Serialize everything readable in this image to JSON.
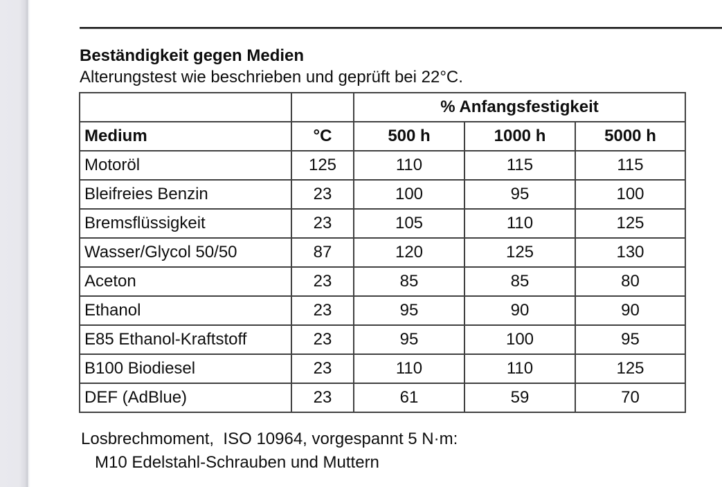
{
  "section": {
    "title": "Beständigkeit gegen Medien",
    "subtitle": "Alterungstest wie beschrieben und geprüft bei 22°C."
  },
  "table": {
    "group_header": "% Anfangsfestigkeit",
    "columns": [
      "Medium",
      "°C",
      "500 h",
      "1000 h",
      "5000 h"
    ],
    "rows": [
      [
        "Motoröl",
        "125",
        "110",
        "115",
        "115"
      ],
      [
        "Bleifreies Benzin",
        "23",
        "100",
        "95",
        "100"
      ],
      [
        "Bremsflüssigkeit",
        "23",
        "105",
        "110",
        "125"
      ],
      [
        "Wasser/Glycol 50/50",
        "87",
        "120",
        "125",
        "130"
      ],
      [
        "Aceton",
        "23",
        "85",
        "85",
        "80"
      ],
      [
        "Ethanol",
        "23",
        "95",
        "90",
        "90"
      ],
      [
        "E85 Ethanol-Kraftstoff",
        "23",
        "95",
        "100",
        "95"
      ],
      [
        "B100 Biodiesel",
        "23",
        "110",
        "110",
        "125"
      ],
      [
        "DEF (AdBlue)",
        "23",
        "61",
        "59",
        "70"
      ]
    ]
  },
  "footnotes": {
    "line1": "Losbrechmoment,  ISO 10964, vorgespannt 5 N·m:",
    "line2": "M10 Edelstahl-Schrauben und Muttern"
  },
  "colors": {
    "page_background": "#ffffff",
    "text": "#0d0d0d",
    "table_border": "#404040",
    "page_edge_gutter": "#e9e9ee"
  }
}
